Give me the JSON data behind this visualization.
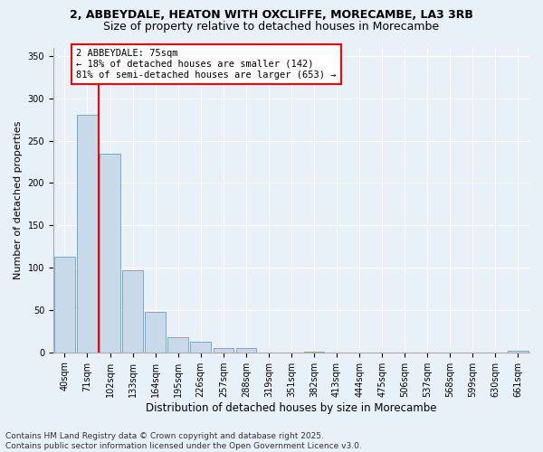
{
  "title1": "2, ABBEYDALE, HEATON WITH OXCLIFFE, MORECAMBE, LA3 3RB",
  "title2": "Size of property relative to detached houses in Morecambe",
  "xlabel": "Distribution of detached houses by size in Morecambe",
  "ylabel": "Number of detached properties",
  "categories": [
    "40sqm",
    "71sqm",
    "102sqm",
    "133sqm",
    "164sqm",
    "195sqm",
    "226sqm",
    "257sqm",
    "288sqm",
    "319sqm",
    "351sqm",
    "382sqm",
    "413sqm",
    "444sqm",
    "475sqm",
    "506sqm",
    "537sqm",
    "568sqm",
    "599sqm",
    "630sqm",
    "661sqm"
  ],
  "values": [
    113,
    280,
    235,
    97,
    48,
    18,
    12,
    5,
    5,
    0,
    0,
    1,
    0,
    0,
    0,
    0,
    0,
    0,
    0,
    0,
    2
  ],
  "bar_color": "#c8daea",
  "bar_edge_color": "#7aaac8",
  "annotation_box_text": "2 ABBEYDALE: 75sqm\n← 18% of detached houses are smaller (142)\n81% of semi-detached houses are larger (653) →",
  "annotation_box_color": "white",
  "annotation_box_edge_color": "red",
  "vline_x_data": 1.5,
  "vline_color": "red",
  "ylim": [
    0,
    360
  ],
  "yticks": [
    0,
    50,
    100,
    150,
    200,
    250,
    300,
    350
  ],
  "footer1": "Contains HM Land Registry data © Crown copyright and database right 2025.",
  "footer2": "Contains public sector information licensed under the Open Government Licence v3.0.",
  "bg_color": "#e8f0f8",
  "plot_bg_color": "#e8f0f8",
  "grid_color": "white",
  "title1_fontsize": 9,
  "title2_fontsize": 9,
  "xlabel_fontsize": 8.5,
  "ylabel_fontsize": 8,
  "tick_fontsize": 7,
  "footer_fontsize": 6.5,
  "annot_fontsize": 7.5
}
